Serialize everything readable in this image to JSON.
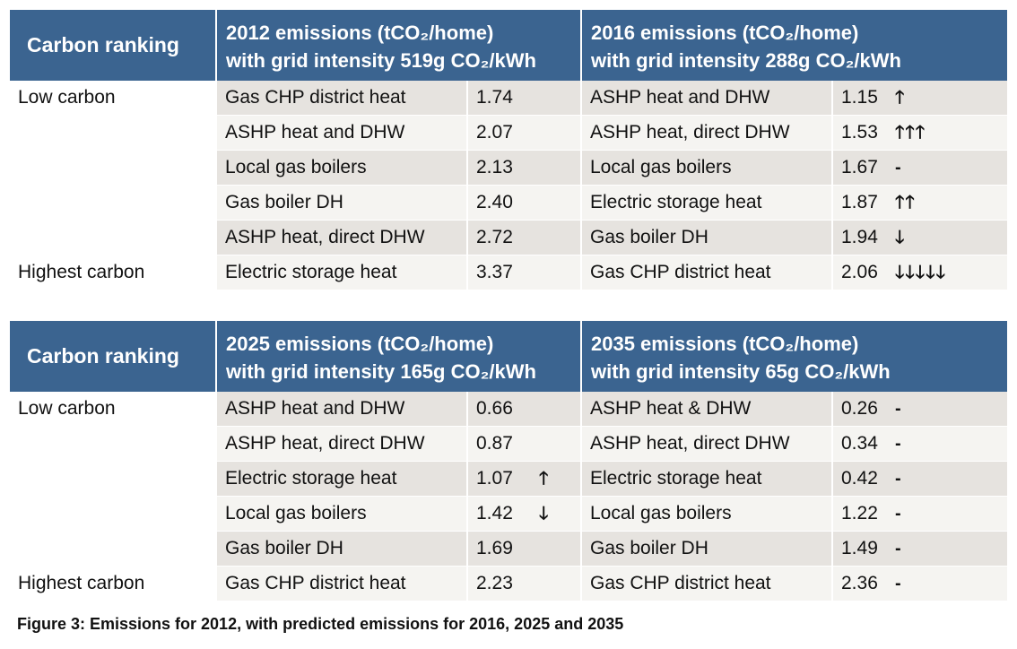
{
  "table1": {
    "rank_header": "Carbon ranking",
    "col1_header": [
      "2012 emissions (tCO₂/home)",
      "with grid intensity 519g CO₂/kWh"
    ],
    "col2_header": [
      "2016 emissions (tCO₂/home)",
      "with grid intensity 288g CO₂/kWh"
    ],
    "rows": [
      {
        "rank": "Low carbon",
        "n1": "Gas CHP district heat",
        "v1": "1.74",
        "a1": "",
        "n2": "ASHP heat and DHW",
        "v2": "1.15",
        "a2": "🡑"
      },
      {
        "rank": "",
        "n1": "ASHP heat and DHW",
        "v1": "2.07",
        "a1": "",
        "n2": "ASHP heat, direct DHW",
        "v2": "1.53",
        "a2": "🡑🡑🡑"
      },
      {
        "rank": "",
        "n1": "Local gas boilers",
        "v1": "2.13",
        "a1": "",
        "n2": "Local gas boilers",
        "v2": "1.67",
        "a2": "-"
      },
      {
        "rank": "",
        "n1": "Gas boiler DH",
        "v1": "2.40",
        "a1": "",
        "n2": "Electric storage heat",
        "v2": "1.87",
        "a2": "🡑🡑"
      },
      {
        "rank": "",
        "n1": "ASHP heat, direct DHW",
        "v1": "2.72",
        "a1": "",
        "n2": "Gas boiler DH",
        "v2": "1.94",
        "a2": "🡓"
      },
      {
        "rank": "Highest carbon",
        "n1": "Electric storage heat",
        "v1": "3.37",
        "a1": "",
        "n2": "Gas CHP district heat",
        "v2": "2.06",
        "a2": "🡓🡓🡓🡓🡓"
      }
    ]
  },
  "table2": {
    "rank_header": "Carbon ranking",
    "col1_header": [
      "2025 emissions (tCO₂/home)",
      "with grid intensity 165g CO₂/kWh"
    ],
    "col2_header": [
      "2035 emissions (tCO₂/home)",
      "with grid intensity 65g CO₂/kWh"
    ],
    "rows": [
      {
        "rank": "Low carbon",
        "n1": "ASHP heat and DHW",
        "v1": "0.66",
        "a1": "",
        "n2": "ASHP heat & DHW",
        "v2": "0.26",
        "a2": "-"
      },
      {
        "rank": "",
        "n1": "ASHP heat, direct DHW",
        "v1": "0.87",
        "a1": "",
        "n2": "ASHP heat, direct DHW",
        "v2": "0.34",
        "a2": "-"
      },
      {
        "rank": "",
        "n1": "Electric storage heat",
        "v1": "1.07",
        "a1": "🡑",
        "n2": "Electric storage heat",
        "v2": "0.42",
        "a2": "-"
      },
      {
        "rank": "",
        "n1": "Local gas boilers",
        "v1": "1.42",
        "a1": "🡓",
        "n2": "Local gas boilers",
        "v2": "1.22",
        "a2": "-"
      },
      {
        "rank": "",
        "n1": "Gas boiler DH",
        "v1": "1.69",
        "a1": "",
        "n2": "Gas boiler DH",
        "v2": "1.49",
        "a2": "-"
      },
      {
        "rank": "Highest carbon",
        "n1": "Gas CHP district heat",
        "v1": "2.23",
        "a1": "",
        "n2": "Gas CHP district heat",
        "v2": "2.36",
        "a2": "-"
      }
    ]
  },
  "caption": "Figure 3: Emissions for 2012, with predicted emissions for 2016, 2025 and 2035",
  "colors": {
    "header_bg": "#3b6490",
    "row_odd": "#e6e3df",
    "row_even": "#f5f4f1"
  }
}
